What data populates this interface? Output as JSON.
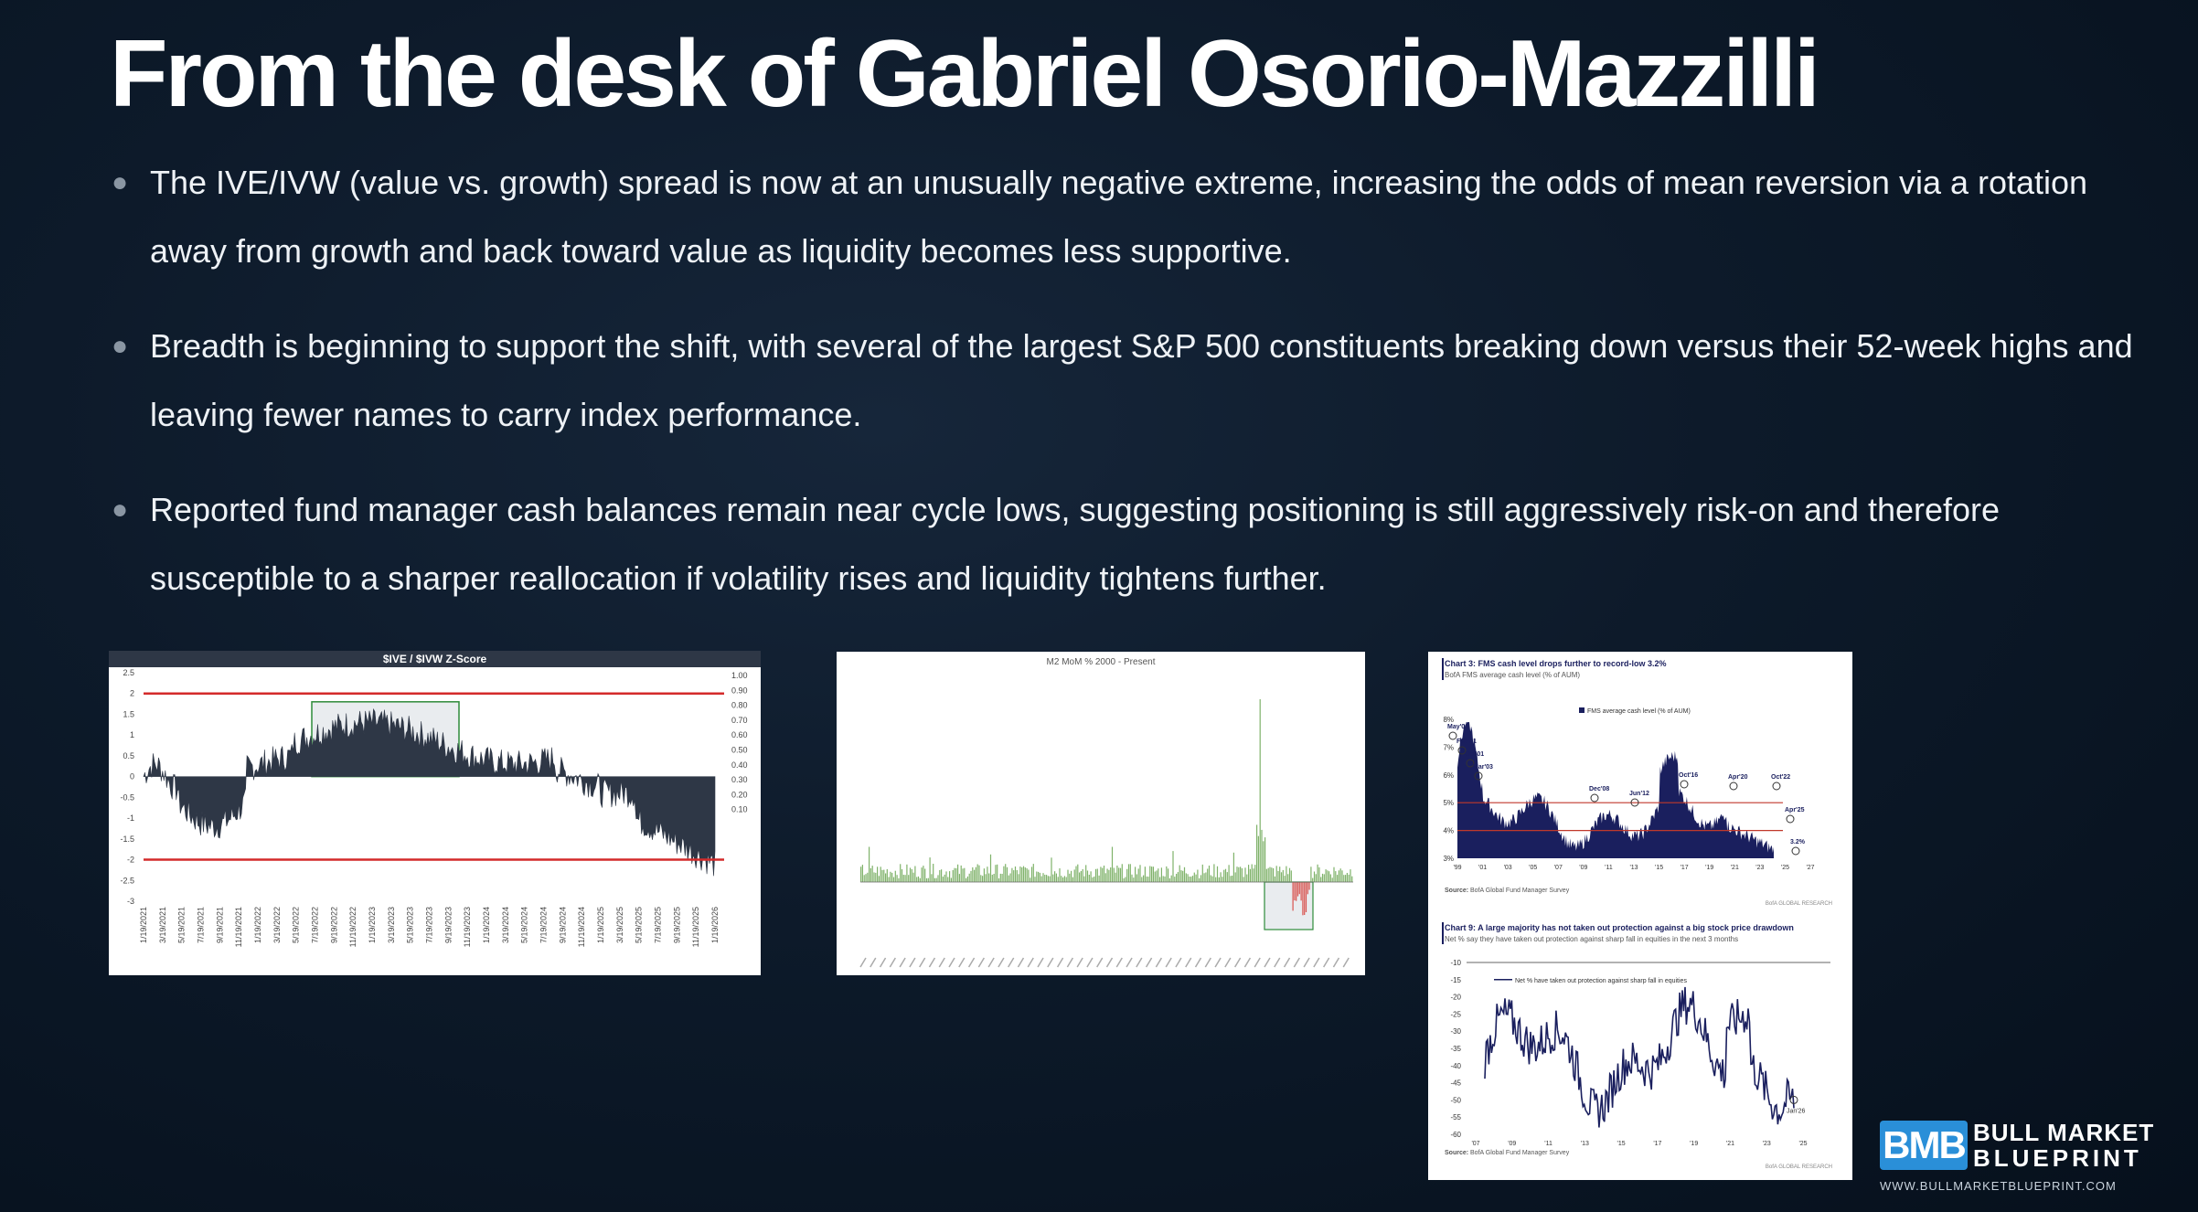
{
  "title": "From the desk of Gabriel Osorio-Mazzilli",
  "bullets": [
    "The IVE/IVW (value vs. growth) spread is now at an unusually negative extreme, increasing the odds of mean reversion via a rotation away from growth and back toward value as liquidity becomes less supportive.",
    "Breadth is beginning to support the shift, with several of the largest S&P 500 constituents breaking down versus their 52-week highs and leaving fewer names to carry index performance.",
    "Reported fund manager cash balances remain near cycle lows, suggesting positioning is still aggressively risk-on and therefore susceptible to a sharper reallocation if volatility rises and liquidity tightens further."
  ],
  "charts": {
    "zscore": {
      "title": "$IVE / $IVW Z-Score",
      "left_ticks": [
        "2.5",
        "2",
        "1.5",
        "1",
        "0.5",
        "0",
        "-0.5",
        "-1",
        "-1.5",
        "-2",
        "-2.5",
        "-3"
      ],
      "right_ticks": [
        "1.00",
        "0.90",
        "0.80",
        "0.70",
        "0.60",
        "0.50",
        "0.40",
        "0.30",
        "0.20",
        "0.10"
      ],
      "x_ticks": [
        "1/19/2021",
        "3/19/2021",
        "5/19/2021",
        "7/19/2021",
        "9/19/2021",
        "11/19/2021",
        "1/19/2022",
        "3/19/2022",
        "5/19/2022",
        "7/19/2022",
        "9/19/2022",
        "11/19/2022",
        "1/19/2023",
        "3/19/2023",
        "5/19/2023",
        "7/19/2023",
        "9/19/2023",
        "11/19/2023",
        "1/19/2024",
        "3/19/2024",
        "5/19/2024",
        "7/19/2024",
        "9/19/2024",
        "11/19/2024",
        "1/19/2025",
        "3/19/2025",
        "5/19/2025",
        "7/19/2025",
        "9/19/2025",
        "11/19/2025",
        "1/19/2026"
      ],
      "threshold_color": "#d42a2a",
      "area_color": "#2e3746"
    },
    "m2": {
      "title": "M2 MoM % 2000 - Present",
      "bar_color": "#7fb26a",
      "neg_color": "#d9534f"
    },
    "fms_cash": {
      "title": "Chart 3: FMS cash level drops further to record-low 3.2%",
      "subtitle": "BofA FMS average cash level (% of AUM)",
      "legend": "FMS average cash level (% of AUM)",
      "y_ticks": [
        "8%",
        "7%",
        "6%",
        "5%",
        "4%",
        "3%"
      ],
      "x_ticks": [
        "'99",
        "'01",
        "'03",
        "'05",
        "'07",
        "'09",
        "'11",
        "'13",
        "'15",
        "'17",
        "'19",
        "'21",
        "'23",
        "'25",
        "'27"
      ],
      "annotations": [
        "May'00",
        "Feb'01",
        "Oct'01",
        "Mar'03",
        "Dec'08",
        "Jun'12",
        "Oct'16",
        "Apr'20",
        "Oct'22",
        "Apr'25",
        "3.2%"
      ],
      "source_label": "Source:",
      "source": "BofA Global Fund Manager Survey",
      "brand": "BofA GLOBAL RESEARCH",
      "fill_color": "#1a1f5e"
    },
    "protection": {
      "title": "Chart 9: A large majority has not taken out protection against a big stock price drawdown",
      "subtitle": "Net % say they have taken out protection against sharp fall in equities in the next 3 months",
      "legend": "Net % have taken out protection against sharp fall in equities",
      "y_ticks": [
        "-10",
        "-15",
        "-20",
        "-25",
        "-30",
        "-35",
        "-40",
        "-45",
        "-50",
        "-55",
        "-60"
      ],
      "x_ticks": [
        "'07",
        "'09",
        "'11",
        "'13",
        "'15",
        "'17",
        "'19",
        "'21",
        "'23",
        "'25"
      ],
      "annotation": "Jan'26",
      "source_label": "Source:",
      "source": "BofA Global Fund Manager Survey",
      "brand": "BofA GLOBAL RESEARCH",
      "line_color": "#1a1f5e"
    }
  },
  "logo": {
    "mark": "BMB",
    "line1": "BULL MARKET",
    "line2": "BLUEPRINT",
    "url": "WWW.BULLMARKETBLUEPRINT.COM"
  }
}
